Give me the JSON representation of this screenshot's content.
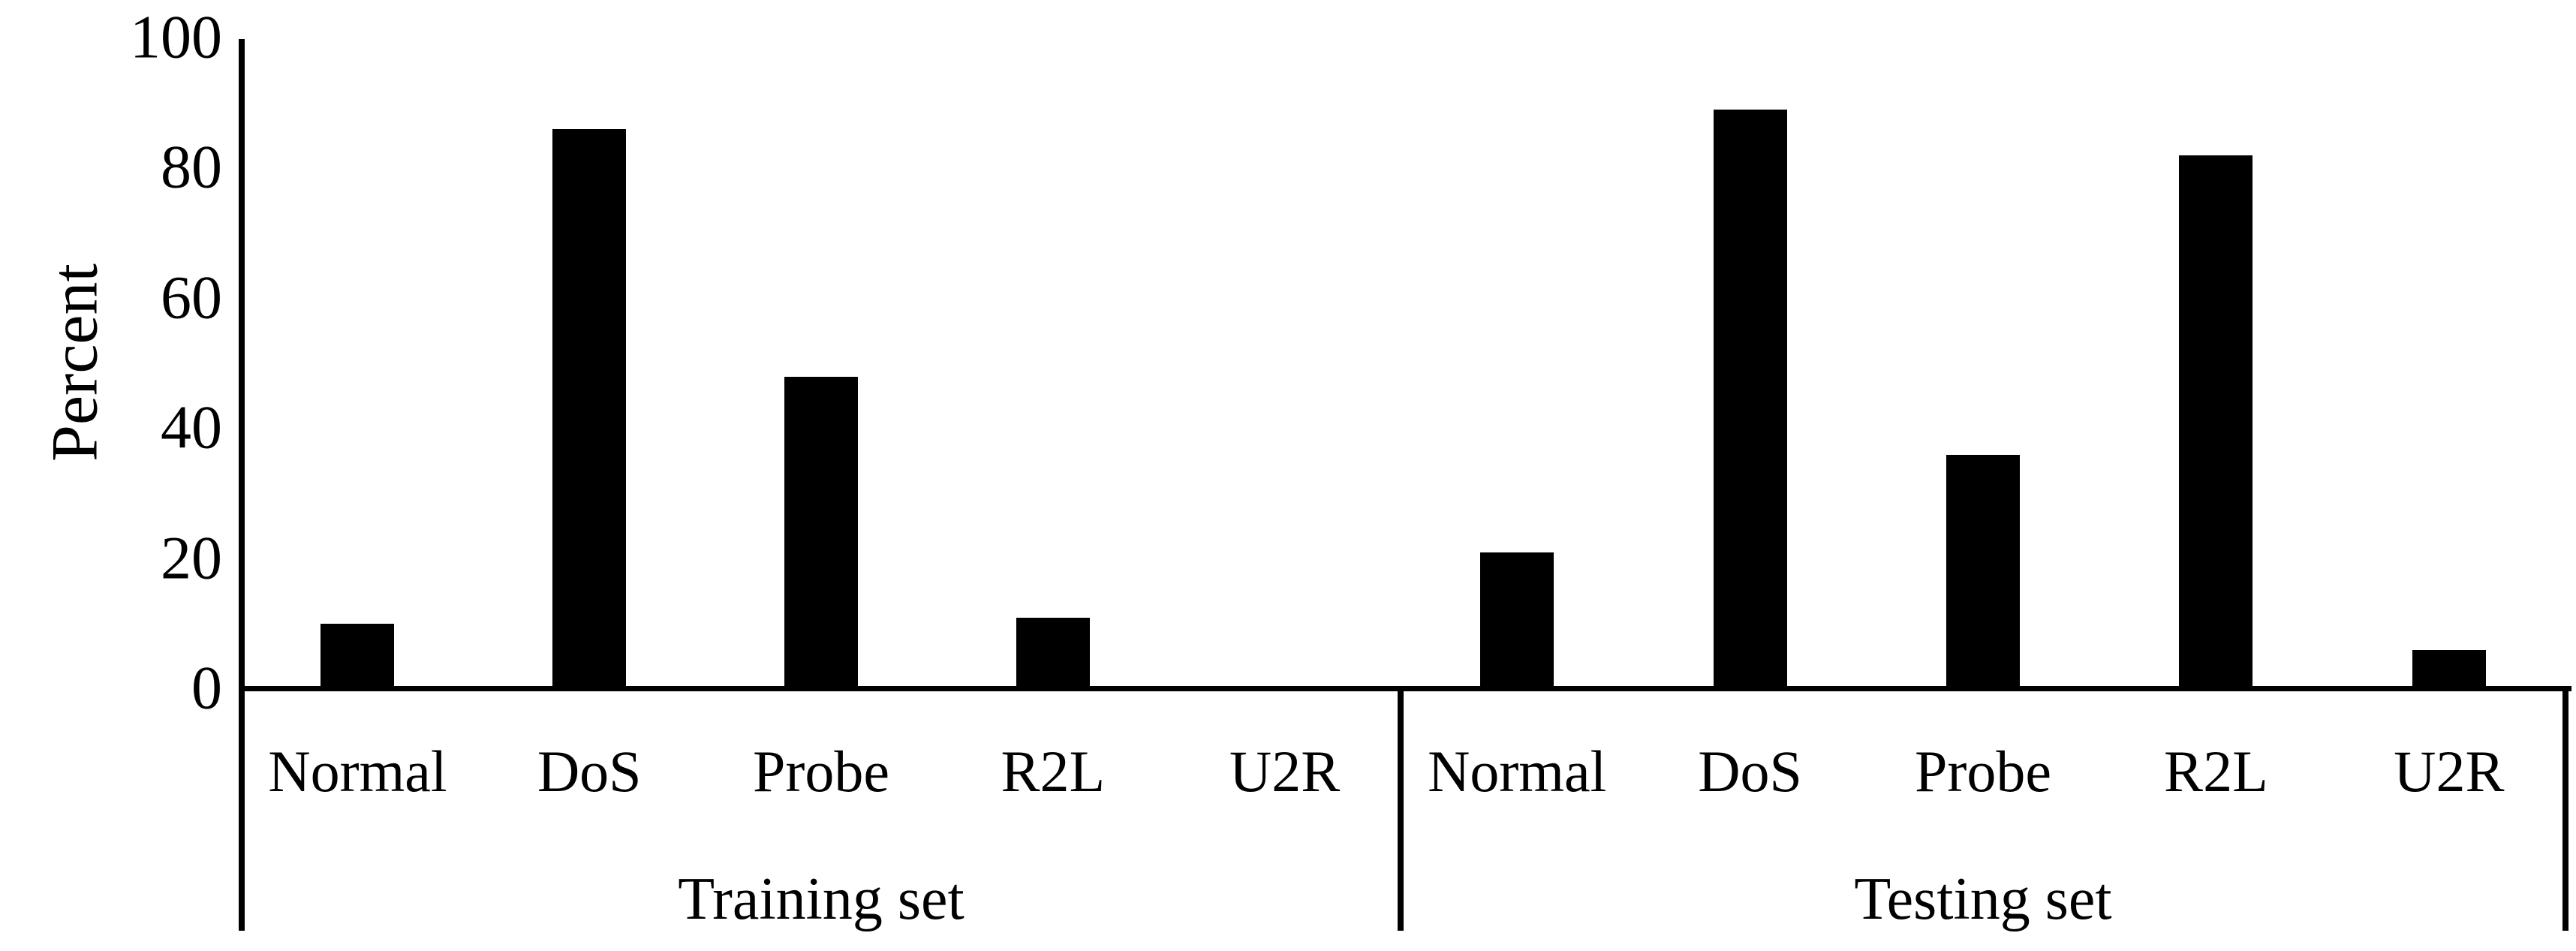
{
  "chart_data": {
    "type": "bar",
    "title": "",
    "ylabel": "Percent",
    "xlabel": "",
    "ylim": [
      0,
      100
    ],
    "yticks": [
      0,
      20,
      40,
      60,
      80,
      100
    ],
    "grid": false,
    "legend_position": "none",
    "bar_color": "#000000",
    "categories": [
      "Normal",
      "DoS",
      "Probe",
      "R2L",
      "U2R"
    ],
    "series": [
      {
        "name": "Training set",
        "values": [
          10,
          86,
          48,
          11,
          0
        ]
      },
      {
        "name": "Testing set",
        "values": [
          21,
          89,
          36,
          82,
          6
        ]
      }
    ],
    "groups": [
      {
        "label": "Training set",
        "categories": [
          "Normal",
          "DoS",
          "Probe",
          "R2L",
          "U2R"
        ],
        "values": [
          10,
          86,
          48,
          11,
          0
        ]
      },
      {
        "label": "Testing set",
        "categories": [
          "Normal",
          "DoS",
          "Probe",
          "R2L",
          "U2R"
        ],
        "values": [
          21,
          89,
          36,
          82,
          6
        ]
      }
    ]
  }
}
